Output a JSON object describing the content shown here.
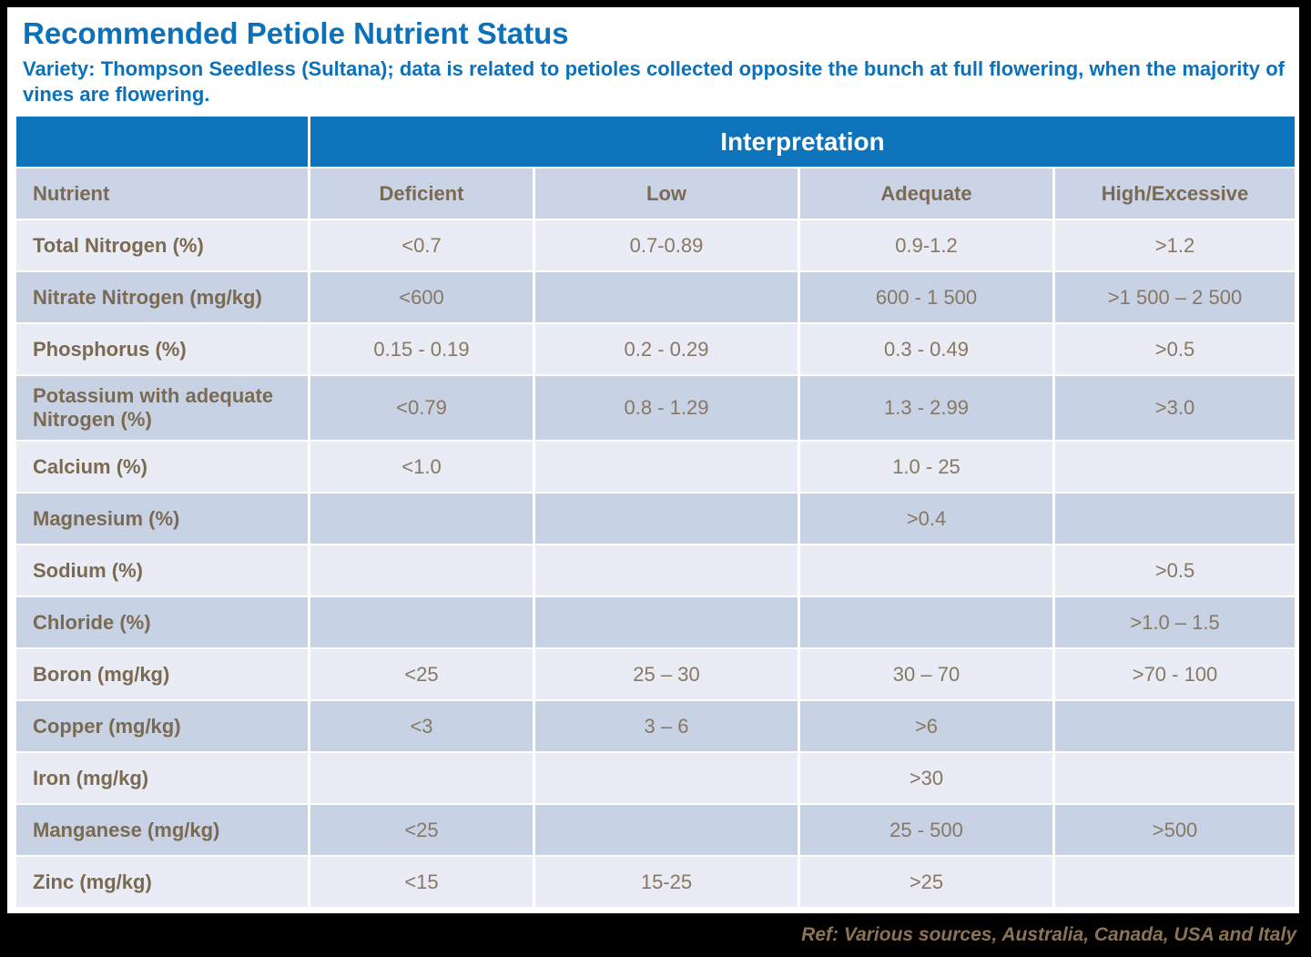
{
  "page": {
    "title": "Recommended Petiole Nutrient Status",
    "subtitle": "Variety: Thompson Seedless (Sultana); data is related to petioles collected opposite the bunch at full flowering, when the majority of vines are flowering.",
    "footer_ref": "Ref: Various sources, Australia, Canada, USA and Italy"
  },
  "colors": {
    "accent_blue": "#0a71ba",
    "header_band_blue": "#0d73ba",
    "header_row_bg": "#cbd4e6",
    "row_light": "#e9ecf4",
    "row_dark": "#c8d2e5",
    "label_brown": "#7b6a52",
    "value_brown": "#877763",
    "footer_brown": "#8c7356",
    "footer_bar_black": "#000000"
  },
  "table": {
    "interpretation_header": "Interpretation",
    "columns": [
      "Nutrient",
      "Deficient",
      "Low",
      "Adequate",
      "High/Excessive"
    ],
    "rows": [
      {
        "cells": [
          "Total Nitrogen (%)",
          "<0.7",
          "0.7-0.89",
          "0.9-1.2",
          ">1.2"
        ]
      },
      {
        "cells": [
          "Nitrate Nitrogen (mg/kg)",
          "<600",
          "",
          "600 - 1 500",
          ">1 500 – 2 500"
        ]
      },
      {
        "cells": [
          "Phosphorus (%)",
          "0.15 - 0.19",
          "0.2 - 0.29",
          "0.3 - 0.49",
          ">0.5"
        ]
      },
      {
        "cells": [
          "Potassium with adequate Nitrogen (%)",
          "<0.79",
          "0.8 - 1.29",
          "1.3 - 2.99",
          ">3.0"
        ]
      },
      {
        "cells": [
          "Calcium (%)",
          "<1.0",
          "",
          "1.0 - 25",
          ""
        ]
      },
      {
        "cells": [
          "Magnesium (%)",
          "",
          "",
          ">0.4",
          ""
        ]
      },
      {
        "cells": [
          "Sodium (%)",
          "",
          "",
          "",
          ">0.5"
        ]
      },
      {
        "cells": [
          "Chloride (%)",
          "",
          "",
          "",
          ">1.0 – 1.5"
        ]
      },
      {
        "cells": [
          "Boron (mg/kg)",
          "<25",
          "25 – 30",
          "30 – 70",
          ">70 - 100"
        ]
      },
      {
        "cells": [
          "Copper (mg/kg)",
          "<3",
          "3 – 6",
          ">6",
          ""
        ]
      },
      {
        "cells": [
          "Iron (mg/kg)",
          "",
          "",
          ">30",
          ""
        ]
      },
      {
        "cells": [
          "Manganese (mg/kg)",
          "<25",
          "",
          "25 - 500",
          ">500"
        ]
      },
      {
        "cells": [
          "Zinc (mg/kg)",
          "<15",
          "15-25",
          ">25",
          ""
        ]
      }
    ]
  }
}
